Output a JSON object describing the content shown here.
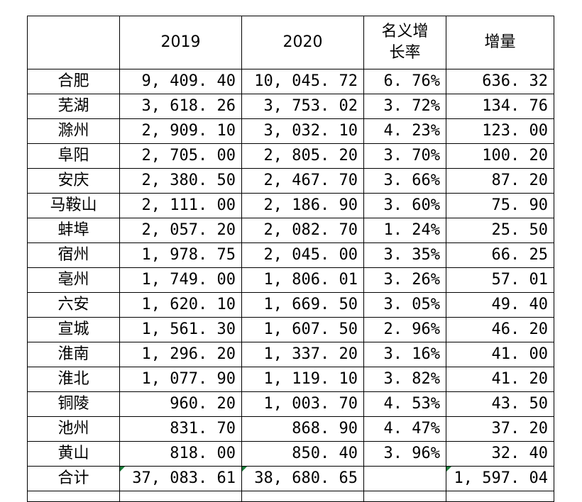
{
  "header": {
    "blank": "",
    "col2019": "2019",
    "col2020": "2020",
    "growth_line1": "名义增",
    "growth_line2": "长率",
    "increase": "增量"
  },
  "rows": [
    {
      "city": "合肥",
      "v2019": "9, 409. 40",
      "v2020": "10, 045. 72",
      "growth": "6. 76%",
      "increase": "636. 32"
    },
    {
      "city": "芜湖",
      "v2019": "3, 618. 26",
      "v2020": "3, 753. 02",
      "growth": "3. 72%",
      "increase": "134. 76"
    },
    {
      "city": "滁州",
      "v2019": "2, 909. 10",
      "v2020": "3, 032. 10",
      "growth": "4. 23%",
      "increase": "123. 00"
    },
    {
      "city": "阜阳",
      "v2019": "2, 705. 00",
      "v2020": "2, 805. 20",
      "growth": "3. 70%",
      "increase": "100. 20"
    },
    {
      "city": "安庆",
      "v2019": "2, 380. 50",
      "v2020": "2, 467. 70",
      "growth": "3. 66%",
      "increase": "87. 20"
    },
    {
      "city": "马鞍山",
      "v2019": "2, 111. 00",
      "v2020": "2, 186. 90",
      "growth": "3. 60%",
      "increase": "75. 90"
    },
    {
      "city": "蚌埠",
      "v2019": "2, 057. 20",
      "v2020": "2, 082. 70",
      "growth": "1. 24%",
      "increase": "25. 50"
    },
    {
      "city": "宿州",
      "v2019": "1, 978. 75",
      "v2020": "2, 045. 00",
      "growth": "3. 35%",
      "increase": "66. 25"
    },
    {
      "city": "亳州",
      "v2019": "1, 749. 00",
      "v2020": "1, 806. 01",
      "growth": "3. 26%",
      "increase": "57. 01"
    },
    {
      "city": "六安",
      "v2019": "1, 620. 10",
      "v2020": "1, 669. 50",
      "growth": "3. 05%",
      "increase": "49. 40"
    },
    {
      "city": "宣城",
      "v2019": "1, 561. 30",
      "v2020": "1, 607. 50",
      "growth": "2. 96%",
      "increase": "46. 20"
    },
    {
      "city": "淮南",
      "v2019": "1, 296. 20",
      "v2020": "1, 337. 20",
      "growth": "3. 16%",
      "increase": "41. 00"
    },
    {
      "city": "淮北",
      "v2019": "1, 077. 90",
      "v2020": "1, 119. 10",
      "growth": "3. 82%",
      "increase": "41. 20"
    },
    {
      "city": "铜陵",
      "v2019": "960. 20",
      "v2020": "1, 003. 70",
      "growth": "4. 53%",
      "increase": "43. 50"
    },
    {
      "city": "池州",
      "v2019": "831. 70",
      "v2020": "868. 90",
      "growth": "4. 47%",
      "increase": "37. 20"
    },
    {
      "city": "黄山",
      "v2019": "818. 00",
      "v2020": "850. 40",
      "growth": "3. 96%",
      "increase": "32. 40"
    }
  ],
  "total": {
    "label": "合计",
    "v2019": "37, 083. 61",
    "v2020": "38, 680. 65",
    "growth": "",
    "increase": "1, 597. 04"
  },
  "colors": {
    "error_flag": "#1b7d3a",
    "grid": "#000000"
  }
}
